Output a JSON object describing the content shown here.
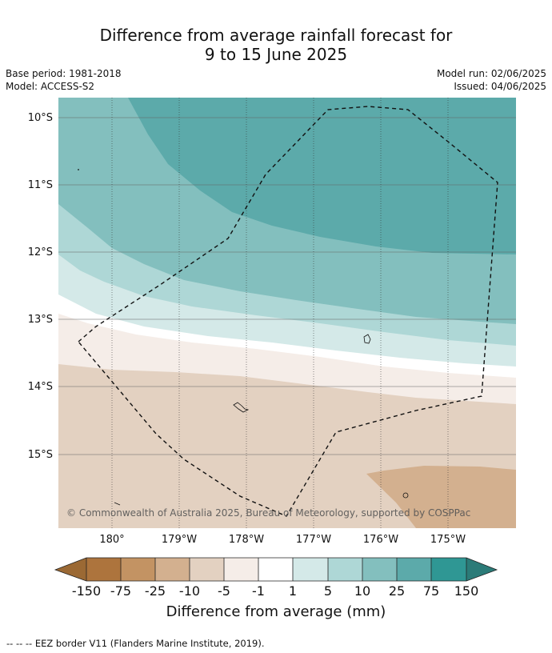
{
  "title_line1": "Difference from average rainfall forecast for",
  "title_line2": "9 to 15 June 2025",
  "base_period": "Base period: 1981-2018",
  "model": "Model: ACCESS-S2",
  "model_run": "Model run: 02/06/2025",
  "issued": "Issued: 04/06/2025",
  "lat_labels": [
    "10°S",
    "11°S",
    "12°S",
    "13°S",
    "14°S",
    "15°S"
  ],
  "lon_labels": [
    "180°",
    "179°W",
    "178°W",
    "177°W",
    "176°W",
    "175°W"
  ],
  "copyright": "© Commonwealth of Australia 2025, Bureau of Meteorology, supported by COSPPac",
  "colorbar": {
    "ticks": [
      "-150",
      "-75",
      "-25",
      "-10",
      "-5",
      "-1",
      "1",
      "5",
      "10",
      "25",
      "75",
      "150"
    ],
    "label": "Difference from average (mm)",
    "colors": {
      "extend_low": "#9b6934",
      "b1": "#ad743d",
      "b2": "#c39363",
      "b3": "#d3b08f",
      "b4": "#e3d1c1",
      "b5": "#f5ede8",
      "b6": "#ffffff",
      "b7": "#d4e9e8",
      "b8": "#aed7d6",
      "b9": "#83bfbe",
      "b10": "#5caaaa",
      "b11": "#2f9794",
      "extend_high": "#2b7b78"
    }
  },
  "footnote": "--  --  -- EEZ border V11 (Flanders Marine Institute, 2019)."
}
